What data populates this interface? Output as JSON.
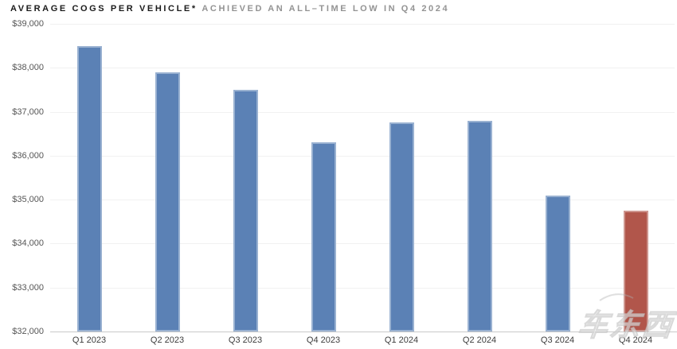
{
  "title": {
    "main": "AVERAGE COGS PER VEHICLE*",
    "sub": "ACHIEVED AN ALL–TIME LOW IN Q4 2024"
  },
  "watermark": {
    "text": "车东西"
  },
  "colors": {
    "bar_blue": "#5b81b5",
    "bar_red": "#b1564b",
    "gridline": "#f1f1f1",
    "axis_line": "#c9c9c9",
    "title_main": "#1b1b1b",
    "title_sub": "#939393",
    "ytick_label": "#565656",
    "xtick_label": "#3d3d3d"
  },
  "chart_data": {
    "type": "bar",
    "title": "AVERAGE COGS PER VEHICLE* ACHIEVED AN ALL–TIME LOW IN Q4 2024",
    "categories": [
      "Q1 2023",
      "Q2 2023",
      "Q3 2023",
      "Q4 2023",
      "Q1 2024",
      "Q2 2024",
      "Q3 2024",
      "Q4 2024"
    ],
    "values": [
      38500,
      37900,
      37500,
      36300,
      36750,
      36800,
      35100,
      34750
    ],
    "highlight_index": 7,
    "highlight_label": "Q4 2024",
    "xlabel": "",
    "ylabel": "",
    "ylim": [
      32000,
      39000
    ],
    "ytick_step": 1000,
    "ytick_labels": [
      "$39,000",
      "$38,000",
      "$37,000",
      "$36,000",
      "$35,000",
      "$34,000",
      "$33,000",
      "$32,000"
    ],
    "grid": "horizontal",
    "legend": "none",
    "bar_color": "#5b81b5",
    "highlight_color": "#b1564b"
  }
}
